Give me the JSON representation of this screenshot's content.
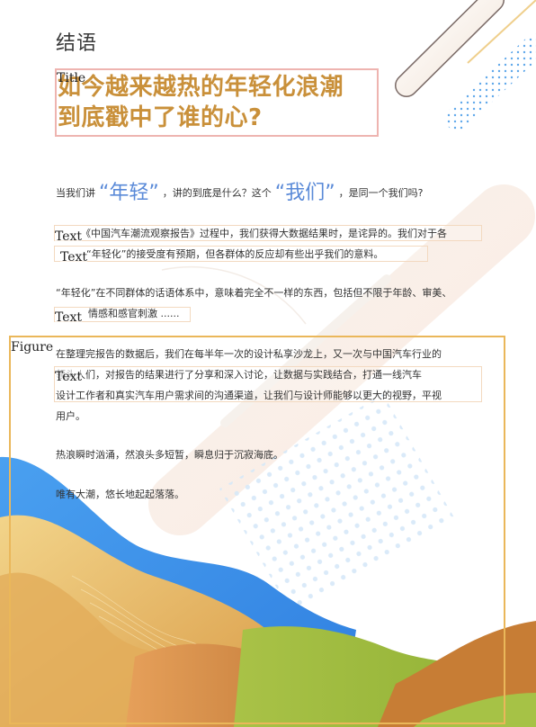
{
  "section_heading": "结语",
  "title": {
    "tag": "Title",
    "line1": "如今越来越热的年轻化浪潮",
    "line2": "到底戳中了谁的心?"
  },
  "intro": {
    "pre": "当我们讲",
    "quote1": "“年轻”",
    "mid": "，讲的到底是什么？这个",
    "quote2": "“我们”",
    "post": "，是同一个我们吗?"
  },
  "paragraphs": {
    "p2_line1": "《中国汽车潮流观察报告》过程中，我们获得大数据结果时，是诧异的。我们对于各",
    "p2_line2": "“年轻化”的接受度有预期，但各群体的反应却有些出乎我们的意料。",
    "p3_line1": "“年轻化”在不同群体的话语体系中，意味着完全不一样的东西，包括但不限于年龄、审美、",
    "p3_line2": "情感和感官刺激 ......",
    "p4_line1": "在整理完报告的数据后，我们在每半年一次的设计私享沙龙上，又一次与中国汽车行业的",
    "p4_line2": "领头人们，对报告的结果进行了分享和深入讨论，让数据与实践结合，打通一线汽车",
    "p4_line3": "设计工作者和真实汽车用户需求间的沟通渠道，让我们与设计师能够以更大的视野，平视",
    "p4_line4": "用户。",
    "p5": "热浪瞬时汹涌，然浪头多短暂，瞬息归于沉寂海底。",
    "p6": "唯有大潮，悠长地起起落落。"
  },
  "tags": {
    "text": "Text",
    "figure": "Figure"
  },
  "colors": {
    "title": "#c9903a",
    "quote_blue": "#5a8ad8",
    "title_box": "#eeb4b0",
    "figure_box": "#eab75a",
    "wave_blue": "#3f8fe8",
    "wave_green": "#9db83c",
    "wave_orange": "#d98a3a"
  }
}
